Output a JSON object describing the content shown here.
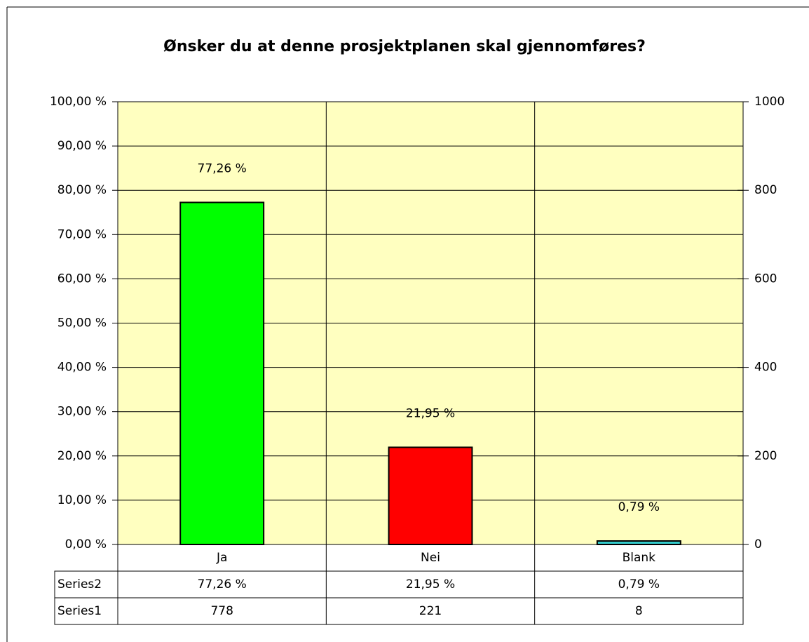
{
  "chart_data": {
    "type": "bar",
    "title": "Ønsker du at denne prosjektplanen skal gjennomføres?",
    "categories": [
      "Ja",
      "Nei",
      "Blank"
    ],
    "series": [
      {
        "name": "Series2",
        "colors": [
          "#00ff00",
          "#ff0000",
          "#33cccc"
        ],
        "values": [
          77.26,
          21.95,
          0.79
        ],
        "value_labels": [
          "77,26 %",
          "21,95 %",
          "0,79 %"
        ]
      },
      {
        "name": "Series1",
        "axis": "y2",
        "values": [
          778,
          221,
          8
        ]
      }
    ],
    "ylim": [
      0,
      100
    ],
    "yticks": [
      {
        "value": 0,
        "label": "0,00 %"
      },
      {
        "value": 10,
        "label": "10,00 %"
      },
      {
        "value": 20,
        "label": "20,00 %"
      },
      {
        "value": 30,
        "label": "30,00 %"
      },
      {
        "value": 40,
        "label": "40,00 %"
      },
      {
        "value": 50,
        "label": "50,00 %"
      },
      {
        "value": 60,
        "label": "60,00 %"
      },
      {
        "value": 70,
        "label": "70,00 %"
      },
      {
        "value": 80,
        "label": "80,00 %"
      },
      {
        "value": 90,
        "label": "90,00 %"
      },
      {
        "value": 100,
        "label": "100,00 %"
      }
    ],
    "y2lim": [
      0,
      1000
    ],
    "y2ticks": [
      0,
      200,
      400,
      600,
      800,
      1000
    ],
    "grid": true,
    "plot_background": "#ffffc0",
    "data_table": true
  }
}
